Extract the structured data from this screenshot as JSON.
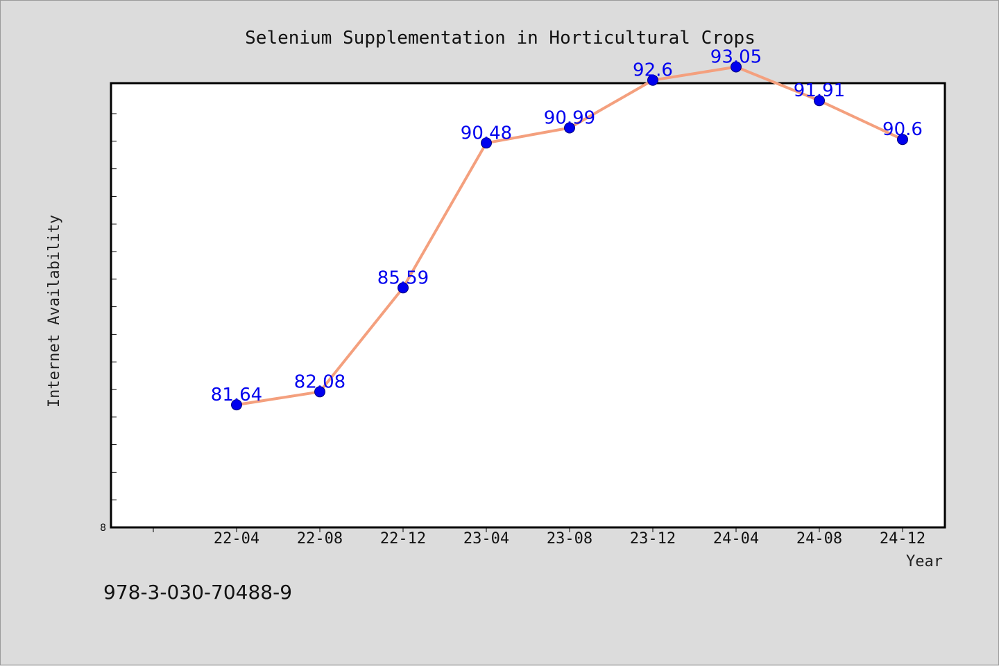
{
  "chart_data": {
    "type": "line",
    "title": "Selenium Supplementation in Horticultural Crops",
    "xlabel": "Year",
    "ylabel": "Internet Availability",
    "categories": [
      "22-04",
      "22-08",
      "22-12",
      "23-04",
      "23-08",
      "23-12",
      "24-04",
      "24-08",
      "24-12"
    ],
    "series": [
      {
        "values": [
          81.64,
          82.08,
          85.59,
          90.48,
          90.99,
          92.6,
          93.05,
          91.91,
          90.6
        ],
        "labels": [
          "81.64",
          "82.08",
          "85.59",
          "90.48",
          "90.99",
          "92.6",
          "93.05",
          "91.91",
          "90.6"
        ]
      }
    ],
    "ylim": [
      77.5,
      92.5
    ],
    "y_tick_count": 15,
    "y_tick_labels": [
      "8"
    ],
    "grid": false,
    "legend": "none",
    "colors": {
      "line": "#f4a07e",
      "marker": "#0000ee",
      "data_label": "#0000ee",
      "plot_background": "#ffffff",
      "page_background": "#dcdcdc"
    }
  },
  "footnote": "978-3-030-70488-9"
}
